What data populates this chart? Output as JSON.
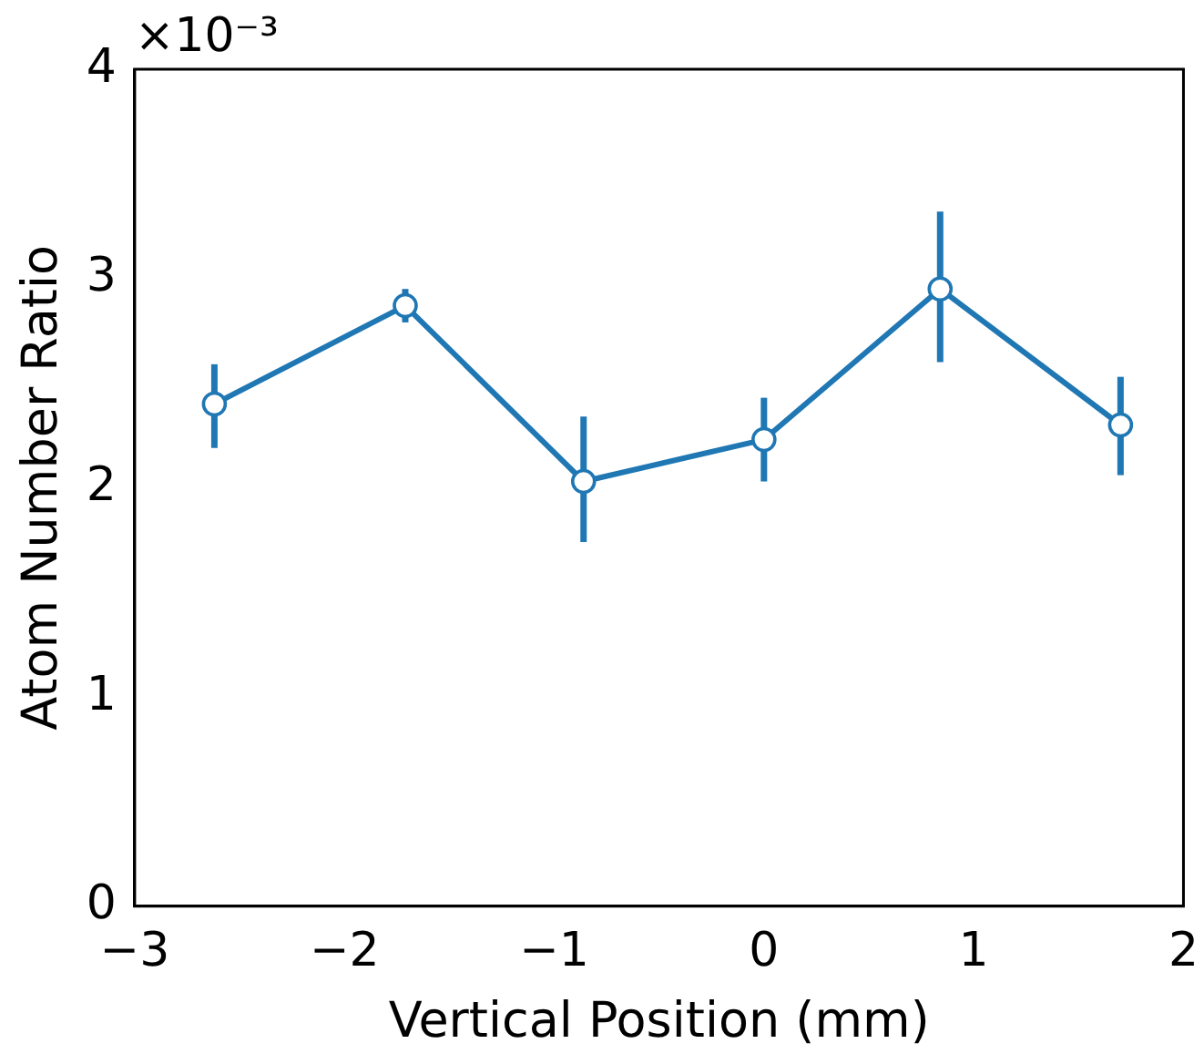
{
  "chart_data": {
    "type": "line",
    "xlabel": "Vertical Position (mm)",
    "ylabel": "Atom Number Ratio",
    "annotations": [
      "×10⁻³"
    ],
    "x": [
      -2.62,
      -1.71,
      -0.86,
      0.0,
      0.84,
      1.7
    ],
    "series": [
      {
        "color": "#1f77b4",
        "values": [
          2.4,
          2.87,
          2.03,
          2.23,
          2.95,
          2.3
        ],
        "errors": [
          [
            2.19,
            2.59
          ],
          [
            2.79,
            2.95
          ],
          [
            1.74,
            2.34
          ],
          [
            2.03,
            2.43
          ],
          [
            2.6,
            3.32
          ],
          [
            2.06,
            2.53
          ]
        ]
      }
    ],
    "xlim": [
      -3,
      2
    ],
    "xticks": [
      {
        "value": -3,
        "label": "−3"
      },
      {
        "value": -2,
        "label": "−2"
      },
      {
        "value": -1,
        "label": "−1"
      },
      0,
      1,
      2
    ],
    "ylim": [
      0,
      4
    ],
    "yticks": [
      0,
      1,
      2,
      3,
      4
    ],
    "grid": false,
    "legend": false,
    "marker": "circle",
    "line_style": "solid"
  }
}
